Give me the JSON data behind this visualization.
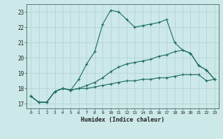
{
  "xlabel": "Humidex (Indice chaleur)",
  "bg_color": "#cce8e8",
  "grid_color": "#b0d0d0",
  "line_color": "#1a6b5a",
  "xlim": [
    -0.5,
    23.5
  ],
  "ylim": [
    16.7,
    23.5
  ],
  "yticks": [
    17,
    18,
    19,
    20,
    21,
    22,
    23
  ],
  "xticks": [
    0,
    1,
    2,
    3,
    4,
    5,
    6,
    7,
    8,
    9,
    10,
    11,
    12,
    13,
    14,
    15,
    16,
    17,
    18,
    19,
    20,
    21,
    22,
    23
  ],
  "series1_x": [
    0,
    1,
    2,
    3,
    4,
    5,
    6,
    7,
    8,
    9,
    10,
    11,
    12,
    13,
    14,
    15,
    16,
    17,
    18,
    19,
    20,
    21,
    22,
    23
  ],
  "series1_y": [
    17.5,
    17.1,
    17.1,
    17.8,
    18.0,
    17.9,
    18.6,
    19.6,
    20.4,
    22.2,
    23.1,
    23.0,
    22.5,
    22.0,
    22.1,
    22.2,
    22.3,
    22.5,
    21.0,
    20.5,
    20.3,
    19.5,
    19.2,
    18.6
  ],
  "series2_x": [
    0,
    1,
    2,
    3,
    4,
    5,
    6,
    7,
    8,
    9,
    10,
    11,
    12,
    13,
    14,
    15,
    16,
    17,
    18,
    19,
    20,
    21,
    22,
    23
  ],
  "series2_y": [
    17.5,
    17.1,
    17.1,
    17.8,
    18.0,
    17.9,
    18.0,
    18.2,
    18.4,
    18.7,
    19.1,
    19.4,
    19.6,
    19.7,
    19.8,
    19.9,
    20.1,
    20.2,
    20.4,
    20.5,
    20.3,
    19.5,
    19.2,
    18.6
  ],
  "series3_x": [
    0,
    1,
    2,
    3,
    4,
    5,
    6,
    7,
    8,
    9,
    10,
    11,
    12,
    13,
    14,
    15,
    16,
    17,
    18,
    19,
    20,
    21,
    22,
    23
  ],
  "series3_y": [
    17.5,
    17.1,
    17.1,
    17.8,
    18.0,
    17.9,
    18.0,
    18.0,
    18.1,
    18.2,
    18.3,
    18.4,
    18.5,
    18.5,
    18.6,
    18.6,
    18.7,
    18.7,
    18.8,
    18.9,
    18.9,
    18.9,
    18.5,
    18.6
  ]
}
